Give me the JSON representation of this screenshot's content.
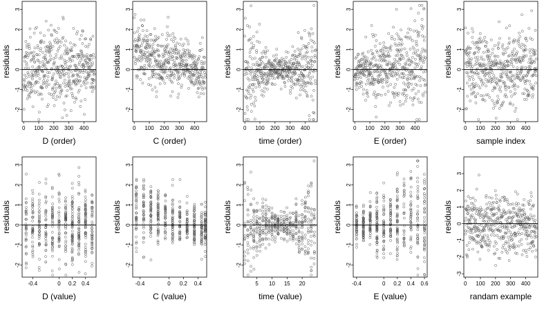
{
  "chart_data": [
    {
      "type": "scatter",
      "xlabel": "D (order)",
      "ylabel": "residuals",
      "xlim": [
        -10,
        480
      ],
      "ylim": [
        -2.6,
        3.4
      ],
      "xticks": [
        0,
        100,
        200,
        300,
        400
      ],
      "xtick_labels": [
        "0",
        "100",
        "200",
        "300",
        "400"
      ],
      "yticks": [
        -2,
        -1,
        0,
        1,
        2,
        3
      ],
      "ytick_labels": [
        "-2",
        "-1",
        "0",
        "1",
        "2",
        "3"
      ],
      "reference_line_y": 0,
      "pattern": "order",
      "shape": "flat",
      "seed": 11
    },
    {
      "type": "scatter",
      "xlabel": "C (order)",
      "ylabel": "residuals",
      "xlim": [
        -10,
        480
      ],
      "ylim": [
        -2.6,
        3.4
      ],
      "xticks": [
        0,
        100,
        200,
        300,
        400
      ],
      "xtick_labels": [
        "0",
        "100",
        "200",
        "300",
        "400"
      ],
      "yticks": [
        -2,
        -1,
        0,
        1,
        2,
        3
      ],
      "ytick_labels": [
        "-2",
        "-1",
        "0",
        "1",
        "2",
        "3"
      ],
      "reference_line_y": 0,
      "pattern": "order",
      "shape": "decreasing",
      "seed": 23
    },
    {
      "type": "scatter",
      "xlabel": "time (order)",
      "ylabel": "residuals",
      "xlim": [
        -10,
        480
      ],
      "ylim": [
        -2.6,
        3.4
      ],
      "xticks": [
        0,
        100,
        200,
        300,
        400
      ],
      "xtick_labels": [
        "0",
        "100",
        "200",
        "300",
        "400"
      ],
      "yticks": [
        -2,
        -1,
        0,
        1,
        2,
        3
      ],
      "ytick_labels": [
        "-2",
        "-1",
        "0",
        "1",
        "2",
        "3"
      ],
      "reference_line_y": 0,
      "pattern": "order",
      "shape": "bowtie",
      "seed": 37
    },
    {
      "type": "scatter",
      "xlabel": "E (order)",
      "ylabel": "residuals",
      "xlim": [
        -10,
        480
      ],
      "ylim": [
        -2.6,
        3.4
      ],
      "xticks": [
        0,
        100,
        200,
        300,
        400
      ],
      "xtick_labels": [
        "0",
        "100",
        "200",
        "300",
        "400"
      ],
      "yticks": [
        -2,
        -1,
        0,
        1,
        2,
        3
      ],
      "ytick_labels": [
        "-2",
        "-1",
        "0",
        "1",
        "2",
        "3"
      ],
      "reference_line_y": 0,
      "pattern": "order",
      "shape": "fan",
      "seed": 41
    },
    {
      "type": "scatter",
      "xlabel": "sample index",
      "ylabel": "residuals",
      "xlim": [
        -10,
        480
      ],
      "ylim": [
        -2.6,
        3.4
      ],
      "xticks": [
        0,
        100,
        200,
        300,
        400
      ],
      "xtick_labels": [
        "0",
        "100",
        "200",
        "300",
        "400"
      ],
      "yticks": [
        -2,
        -1,
        0,
        1,
        2,
        3
      ],
      "ytick_labels": [
        "-2",
        "-1",
        "0",
        "1",
        "2",
        "3"
      ],
      "reference_line_y": 0,
      "pattern": "order",
      "shape": "flat",
      "seed": 53
    },
    {
      "type": "scatter",
      "xlabel": "D (value)",
      "ylabel": "residuals",
      "xlim": [
        -0.56,
        0.56
      ],
      "ylim": [
        -2.6,
        3.4
      ],
      "xticks": [
        -0.4,
        0,
        0.2,
        0.4
      ],
      "xtick_labels": [
        "-0.4",
        "0",
        "0.2",
        "0.4"
      ],
      "yticks": [
        -2,
        -1,
        0,
        1,
        2,
        3
      ],
      "ytick_labels": [
        "-2",
        "-1",
        "0",
        "1",
        "2",
        "3"
      ],
      "reference_line_y": 0,
      "pattern": "value",
      "shape": "flat",
      "levels": [
        -0.5,
        -0.4,
        -0.3,
        -0.2,
        -0.1,
        0.0,
        0.1,
        0.2,
        0.3,
        0.4,
        0.5
      ],
      "seed": 67
    },
    {
      "type": "scatter",
      "xlabel": "C (value)",
      "ylabel": "residuals",
      "xlim": [
        -0.5,
        0.52
      ],
      "ylim": [
        -2.6,
        3.4
      ],
      "xticks": [
        -0.4,
        0,
        0.2,
        0.4
      ],
      "xtick_labels": [
        "-0.4",
        "0",
        "0.2",
        "0.4"
      ],
      "yticks": [
        -2,
        -1,
        0,
        1,
        2,
        3
      ],
      "ytick_labels": [
        "-2",
        "-1",
        "0",
        "1",
        "2",
        "3"
      ],
      "reference_line_y": 0,
      "pattern": "value",
      "shape": "decreasing",
      "levels": [
        -0.45,
        -0.35,
        -0.25,
        -0.15,
        -0.05,
        0.05,
        0.15,
        0.25,
        0.35,
        0.45,
        0.5
      ],
      "seed": 71
    },
    {
      "type": "scatter",
      "xlabel": "time (value)",
      "ylabel": "residuals",
      "xlim": [
        0.5,
        25
      ],
      "ylim": [
        -2.6,
        3.4
      ],
      "xticks": [
        5,
        10,
        15,
        20
      ],
      "xtick_labels": [
        "5",
        "10",
        "15",
        "20"
      ],
      "yticks": [
        -2,
        -1,
        0,
        1,
        2,
        3
      ],
      "ytick_labels": [
        "-2",
        "-1",
        "0",
        "1",
        "2",
        "3"
      ],
      "reference_line_y": 0,
      "pattern": "value",
      "shape": "bowtie",
      "levels": [
        1,
        2,
        3,
        4,
        5,
        6,
        7,
        8,
        9,
        10,
        11,
        12,
        13,
        14,
        15,
        16,
        17,
        18,
        19,
        20,
        21,
        22,
        23,
        24
      ],
      "seed": 83
    },
    {
      "type": "scatter",
      "xlabel": "E (value)",
      "ylabel": "residuals",
      "xlim": [
        -0.45,
        0.64
      ],
      "ylim": [
        -2.6,
        3.4
      ],
      "xticks": [
        -0.4,
        0,
        0.2,
        0.4,
        0.6
      ],
      "xtick_labels": [
        "-0.4",
        "0",
        "0.2",
        "0.4",
        "0.6"
      ],
      "yticks": [
        -2,
        -1,
        0,
        1,
        2,
        3
      ],
      "ytick_labels": [
        "-2",
        "-1",
        "0",
        "1",
        "2",
        "3"
      ],
      "reference_line_y": 0,
      "pattern": "value",
      "shape": "fan",
      "levels": [
        -0.4,
        -0.3,
        -0.2,
        -0.1,
        0.0,
        0.1,
        0.2,
        0.3,
        0.4,
        0.5,
        0.6
      ],
      "seed": 97
    },
    {
      "type": "scatter",
      "xlabel": "randam example",
      "ylabel": "residuals",
      "xlim": [
        -10,
        480
      ],
      "ylim": [
        -3.2,
        4.0
      ],
      "xticks": [
        0,
        100,
        200,
        300,
        400
      ],
      "xtick_labels": [
        "0",
        "100",
        "200",
        "300",
        "400"
      ],
      "yticks": [
        -3,
        -2,
        -1,
        0,
        1,
        2,
        3
      ],
      "ytick_labels": [
        "-3",
        "-2",
        "-1",
        "0",
        "1",
        "2",
        "3"
      ],
      "reference_line_y": 0,
      "pattern": "order",
      "shape": "flat",
      "seed": 101
    }
  ],
  "style": {
    "point_color": "#555555",
    "axis_color": "#000000",
    "reference_line_color": "#000000",
    "points_per_panel": 480
  }
}
